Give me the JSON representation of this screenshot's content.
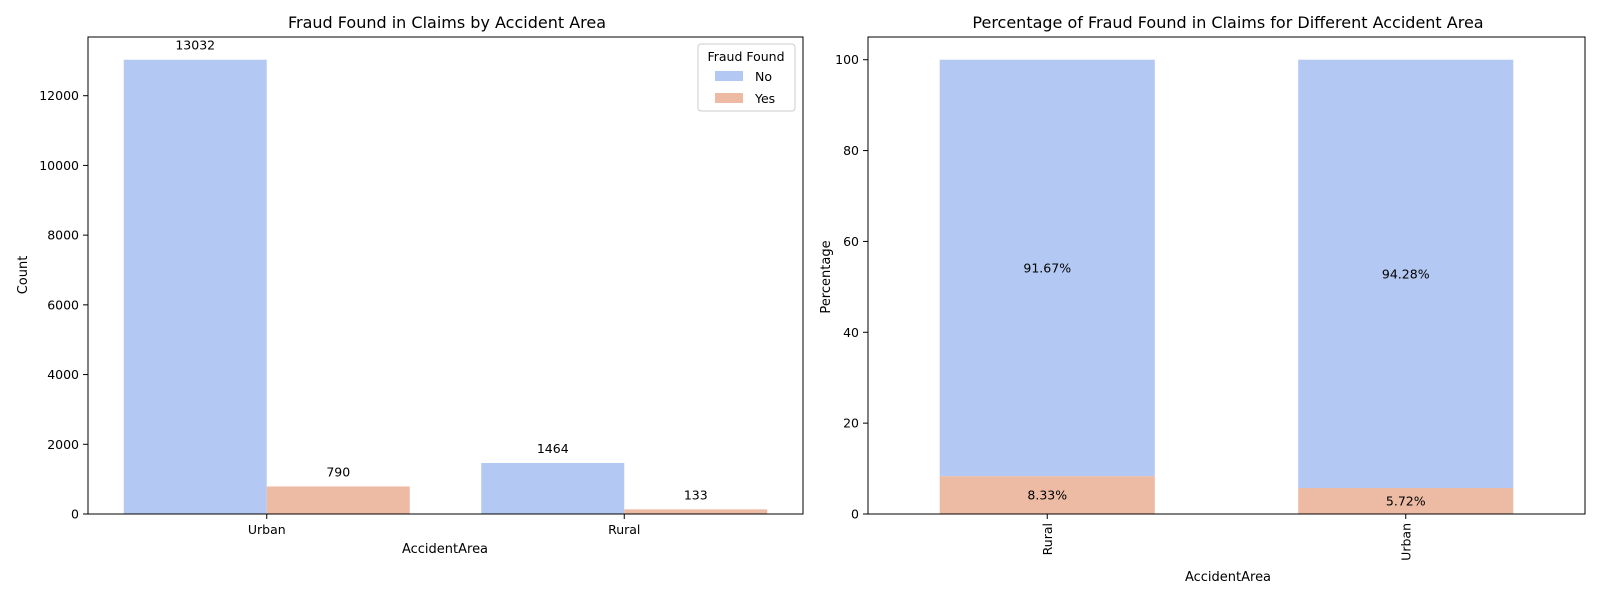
{
  "chart_data": [
    {
      "type": "bar",
      "title": "Fraud Found in Claims by Accident Area",
      "xlabel": "AccidentArea",
      "ylabel": "Count",
      "categories": [
        "Urban",
        "Rural"
      ],
      "series": [
        {
          "name": "No",
          "values": [
            13032,
            1464
          ],
          "color": "#b3c8f2"
        },
        {
          "name": "Yes",
          "values": [
            790,
            133
          ],
          "color": "#edbba4"
        }
      ],
      "ylim": [
        0,
        13684
      ],
      "yticks": [
        0,
        2000,
        4000,
        6000,
        8000,
        10000,
        12000
      ],
      "data_labels": [
        "13032",
        "1464",
        "790",
        "133"
      ],
      "legend": {
        "title": "Fraud Found",
        "placement": "top-right"
      },
      "grid": false
    },
    {
      "type": "bar",
      "stacked": true,
      "title": "Percentage of Fraud Found in Claims for Different Accident Area",
      "xlabel": "AccidentArea",
      "ylabel": "Percentage",
      "categories": [
        "Rural",
        "Urban"
      ],
      "series": [
        {
          "name": "Yes",
          "values": [
            8.33,
            5.72
          ],
          "color": "#edbba4"
        },
        {
          "name": "No",
          "values": [
            91.67,
            94.28
          ],
          "color": "#b3c8f2"
        }
      ],
      "ylim": [
        0,
        105
      ],
      "yticks": [
        0,
        20,
        40,
        60,
        80,
        100
      ],
      "data_labels": {
        "No": [
          "91.67%",
          "94.28%"
        ],
        "Yes": [
          "8.33%",
          "5.72%"
        ]
      },
      "xtick_rotation": 90,
      "grid": false
    }
  ]
}
